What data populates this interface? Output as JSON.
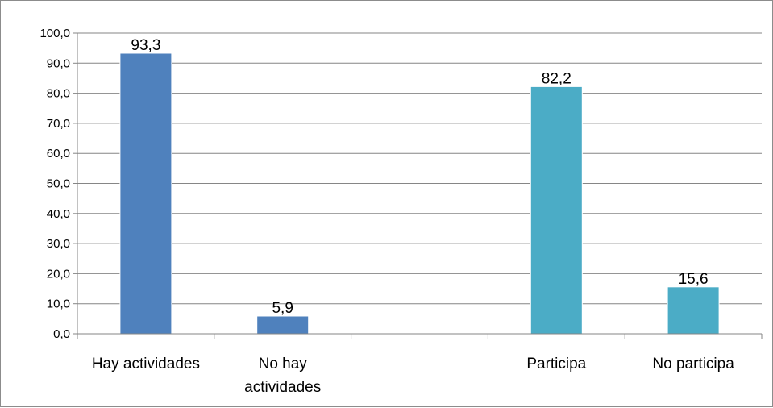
{
  "chart_data": {
    "type": "bar",
    "categories": [
      {
        "lines": [
          "Hay actividades"
        ]
      },
      {
        "lines": [
          "No hay",
          "actividades"
        ]
      },
      {
        "lines": [
          ""
        ]
      },
      {
        "lines": [
          "Participa"
        ]
      },
      {
        "lines": [
          "No participa"
        ]
      }
    ],
    "values": [
      93.3,
      5.9,
      null,
      82.2,
      15.6
    ],
    "data_labels": [
      "93,3",
      "5,9",
      "",
      "82,2",
      "15,6"
    ],
    "bar_colors": [
      "#4f81bd",
      "#4f81bd",
      null,
      "#4bacc6",
      "#4bacc6"
    ],
    "ylim": [
      0,
      100
    ],
    "ytick_labels": [
      "0,0",
      "10,0",
      "20,0",
      "30,0",
      "40,0",
      "50,0",
      "60,0",
      "70,0",
      "80,0",
      "90,0",
      "100,0"
    ],
    "grid": true,
    "gridline_color": "#868686",
    "title": "",
    "xlabel": "",
    "ylabel": ""
  }
}
